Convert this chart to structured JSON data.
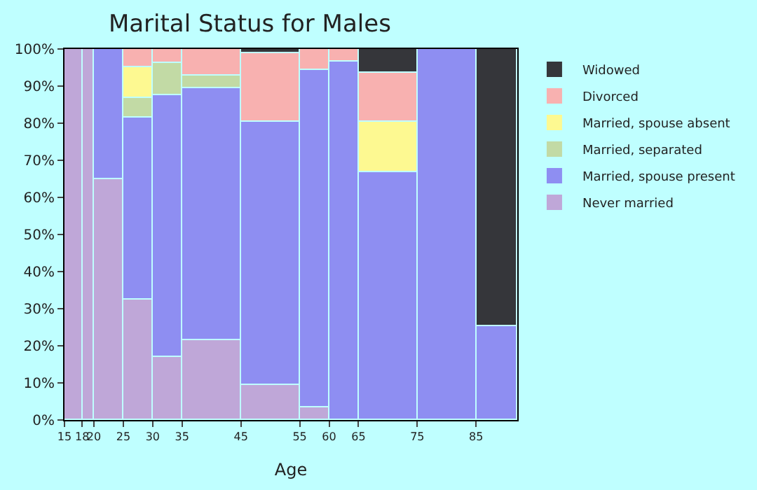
{
  "chart_data": {
    "type": "bar",
    "title": "Marital Status for Males",
    "xlabel": "Age",
    "x": [
      16.5,
      19,
      22.5,
      27.5,
      32.5,
      40,
      50,
      57.5,
      62.5,
      70,
      80,
      88.5
    ],
    "xlim": [
      15,
      92
    ],
    "xticks": [
      15,
      18,
      20,
      25,
      30,
      35,
      45,
      55,
      60,
      65,
      75,
      85
    ],
    "ylim": [
      0,
      100
    ],
    "yticks": [
      {
        "value": 0,
        "label": "0%"
      },
      {
        "value": 10,
        "label": "10%"
      },
      {
        "value": 20,
        "label": "20%"
      },
      {
        "value": 30,
        "label": "30%"
      },
      {
        "value": 40,
        "label": "40%"
      },
      {
        "value": 50,
        "label": "50%"
      },
      {
        "value": 60,
        "label": "60%"
      },
      {
        "value": 70,
        "label": "70%"
      },
      {
        "value": 80,
        "label": "80%"
      },
      {
        "value": 90,
        "label": "90%"
      },
      {
        "value": 100,
        "label": "100%"
      }
    ],
    "stacked": true,
    "legend": "right",
    "series": [
      {
        "name": "Never married",
        "color": "#bfa7d8",
        "values": [
          100,
          100,
          65,
          32.6,
          17,
          21.5,
          9.3,
          3.3,
          null,
          null,
          null,
          null
        ]
      },
      {
        "name": "Married, spouse present",
        "color": "#8e8ef2",
        "values": [
          null,
          null,
          35,
          48.8,
          70.6,
          68,
          71,
          91,
          96.5,
          66.7,
          100,
          25.3
        ]
      },
      {
        "name": "Married, separated",
        "color": "#c2daa5",
        "values": [
          null,
          null,
          null,
          5.5,
          8.6,
          3.3,
          null,
          null,
          null,
          null,
          null,
          null
        ]
      },
      {
        "name": "Married, spouse absent",
        "color": "#fdf991",
        "values": [
          null,
          null,
          null,
          8.1,
          null,
          null,
          null,
          null,
          null,
          13.6,
          null,
          null
        ]
      },
      {
        "name": "Divorced",
        "color": "#f8b1b0",
        "values": [
          null,
          null,
          null,
          5,
          3.8,
          7.2,
          18.5,
          5.7,
          3.5,
          13.2,
          null,
          null
        ]
      },
      {
        "name": "Widowed",
        "color": "#35363a",
        "values": [
          null,
          null,
          null,
          null,
          null,
          null,
          1.2,
          null,
          null,
          6.5,
          null,
          74.7
        ]
      }
    ]
  }
}
